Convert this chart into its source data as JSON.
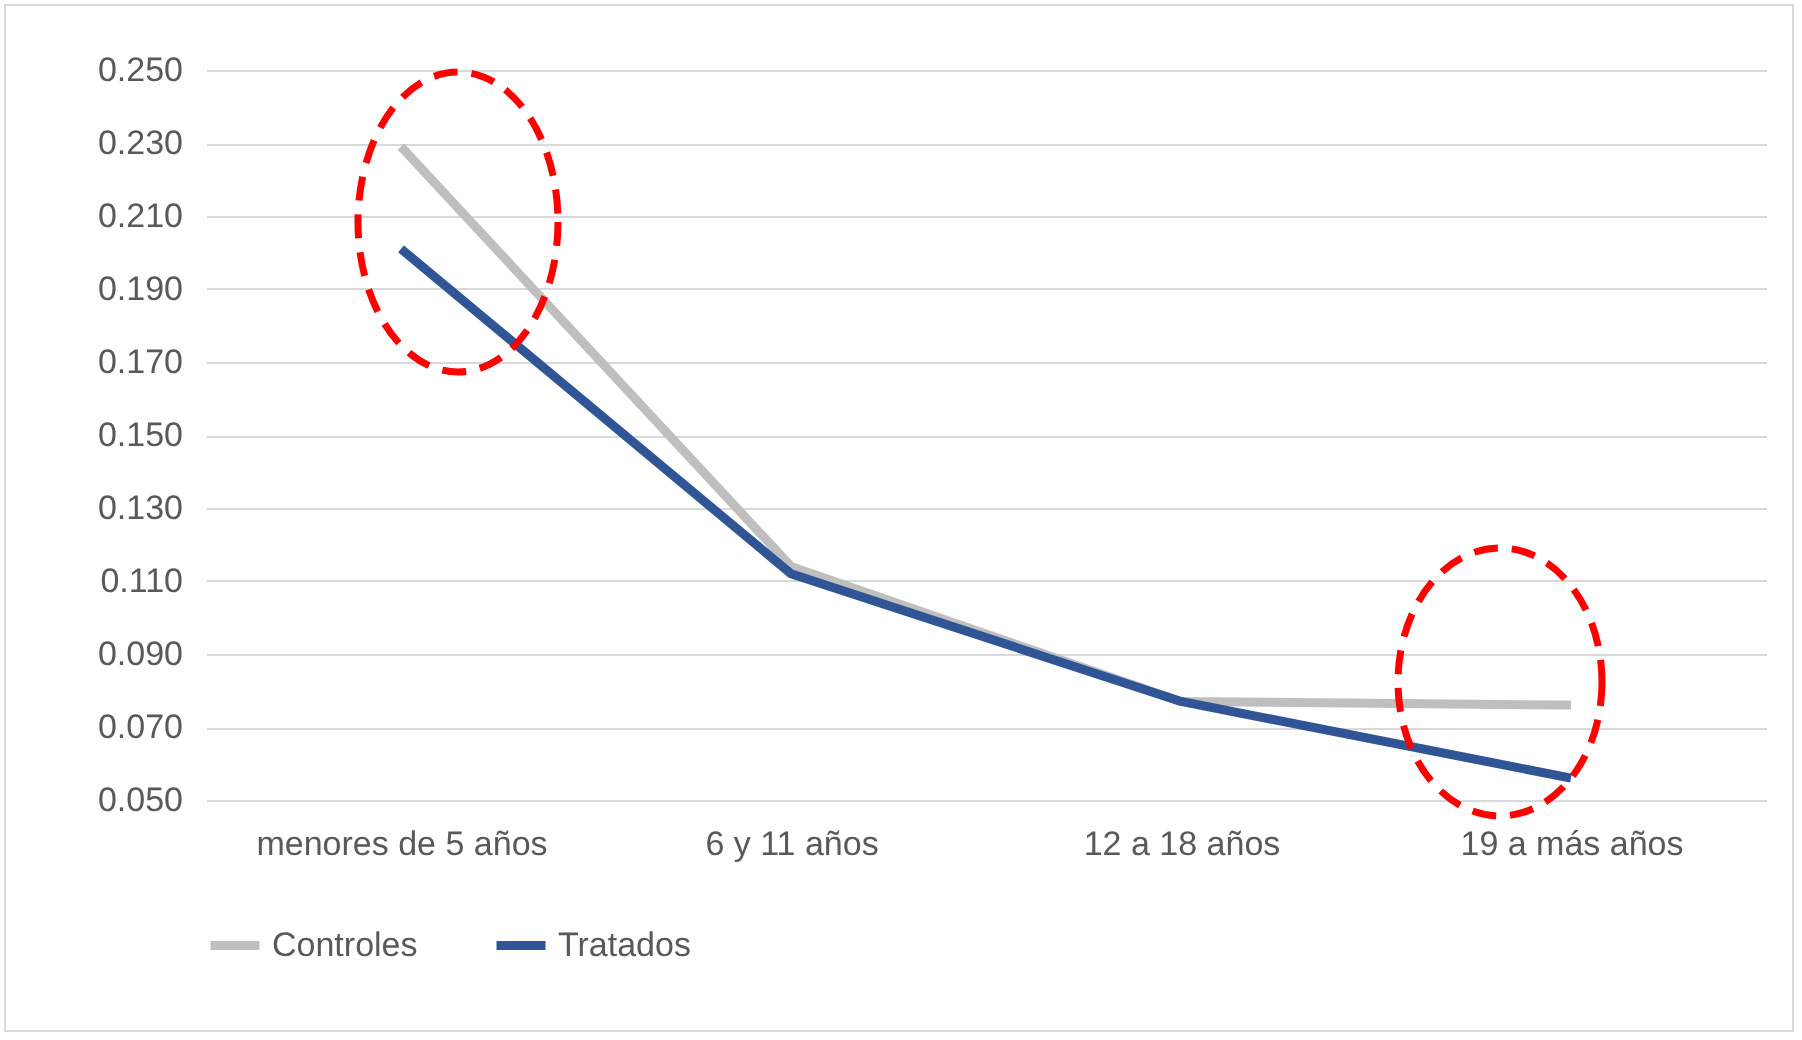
{
  "chart_data": {
    "type": "line",
    "categories": [
      "menores de 5 años",
      "6 y 11 años",
      "12 a 18 años",
      "19 a más años"
    ],
    "series": [
      {
        "name": "Controles",
        "color": "#bfbfbf",
        "values": [
          0.229,
          0.114,
          0.077,
          0.076
        ]
      },
      {
        "name": "Tratados",
        "color": "#2f5597",
        "values": [
          0.201,
          0.112,
          0.077,
          0.056
        ]
      }
    ],
    "ylim": [
      0.05,
      0.25
    ],
    "yticks": [
      {
        "value": 0.05,
        "label": "0.050"
      },
      {
        "value": 0.07,
        "label": "0.070"
      },
      {
        "value": 0.09,
        "label": "0.090"
      },
      {
        "value": 0.11,
        "label": "0.110"
      },
      {
        "value": 0.13,
        "label": "0.130"
      },
      {
        "value": 0.15,
        "label": "0.150"
      },
      {
        "value": 0.17,
        "label": "0.170"
      },
      {
        "value": 0.19,
        "label": "0.190"
      },
      {
        "value": 0.21,
        "label": "0.210"
      },
      {
        "value": 0.23,
        "label": "0.230"
      },
      {
        "value": 0.25,
        "label": "0.250"
      }
    ],
    "grid": "y",
    "legend": "bottom",
    "marker": "none",
    "line_style": "solid"
  }
}
